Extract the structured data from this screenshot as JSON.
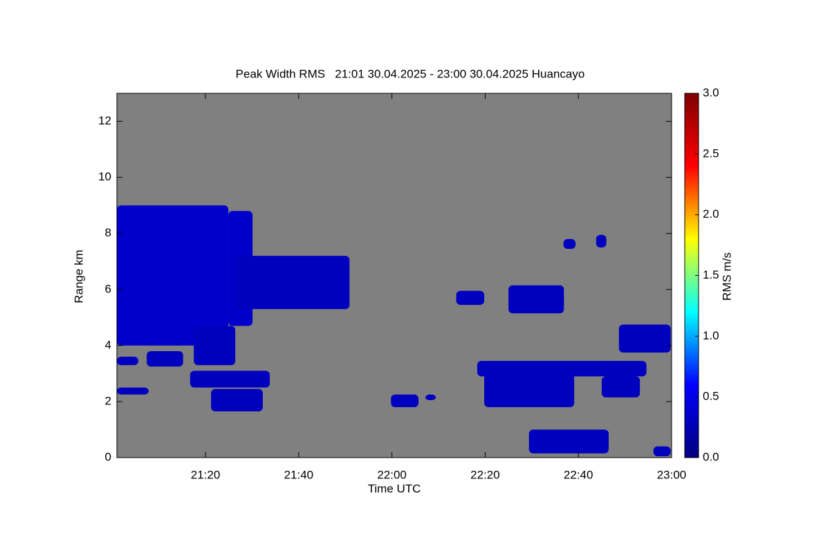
{
  "chart_data": {
    "type": "heatmap",
    "title": "Peak Width RMS   21:01 30.04.2025 - 23:00 30.04.2025 Huancayo",
    "x_label": "Time UTC",
    "y_label": "Range km",
    "colorbar_label": "RMS m/s",
    "background": "#808080",
    "colormap": [
      "#00007f",
      "#0000ff",
      "#00ffff",
      "#ffff00",
      "#ff0000",
      "#7f0000"
    ],
    "xlim": [
      1261,
      1380
    ],
    "xticks": [
      {
        "value": 1280,
        "label": "21:20"
      },
      {
        "value": 1300,
        "label": "21:40"
      },
      {
        "value": 1320,
        "label": "22:00"
      },
      {
        "value": 1340,
        "label": "22:20"
      },
      {
        "value": 1360,
        "label": "22:40"
      },
      {
        "value": 1380,
        "label": "23:00"
      }
    ],
    "ylim": [
      0,
      13
    ],
    "yticks": [
      0,
      2,
      4,
      6,
      8,
      10,
      12
    ],
    "clim": [
      0,
      3
    ],
    "cticks": [
      {
        "value": 0,
        "label": "0.0"
      },
      {
        "value": 0.5,
        "label": "0.5"
      },
      {
        "value": 1,
        "label": "1.0"
      },
      {
        "value": 1.5,
        "label": "1.5"
      },
      {
        "value": 2,
        "label": "2.0"
      },
      {
        "value": 2.5,
        "label": "2.5"
      },
      {
        "value": 3,
        "label": "3.0"
      }
    ],
    "patches": [
      {
        "x": [
          1261,
          1284.9
        ],
        "y": [
          4.0,
          9.0
        ],
        "value": 0.35
      },
      {
        "x": [
          1284.9,
          1290.1
        ],
        "y": [
          4.7,
          8.8
        ],
        "value": 0.35
      },
      {
        "x": [
          1277.5,
          1286.4
        ],
        "y": [
          3.3,
          4.7
        ],
        "value": 0.3
      },
      {
        "x": [
          1286.4,
          1310.9
        ],
        "y": [
          5.3,
          7.2
        ],
        "value": 0.3
      },
      {
        "x": [
          1261,
          1265.6
        ],
        "y": [
          3.3,
          3.6
        ],
        "value": 0.3
      },
      {
        "x": [
          1267.4,
          1275.2
        ],
        "y": [
          3.25,
          3.8
        ],
        "value": 0.3
      },
      {
        "x": [
          1261,
          1267.8
        ],
        "y": [
          2.25,
          2.5
        ],
        "value": 0.3
      },
      {
        "x": [
          1276.7,
          1293.8
        ],
        "y": [
          2.5,
          3.1
        ],
        "value": 0.3
      },
      {
        "x": [
          1281.2,
          1292.3
        ],
        "y": [
          1.65,
          2.45
        ],
        "value": 0.3
      },
      {
        "x": [
          1319.8,
          1325.7
        ],
        "y": [
          1.8,
          2.25
        ],
        "value": 0.3
      },
      {
        "x": [
          1327.2,
          1329.4
        ],
        "y": [
          2.05,
          2.25
        ],
        "value": 0.3
      },
      {
        "x": [
          1333.8,
          1339.8
        ],
        "y": [
          5.45,
          5.95
        ],
        "value": 0.3
      },
      {
        "x": [
          1345,
          1356.9
        ],
        "y": [
          5.15,
          6.15
        ],
        "value": 0.3
      },
      {
        "x": [
          1338.3,
          1374.6
        ],
        "y": [
          2.9,
          3.45
        ],
        "value": 0.3
      },
      {
        "x": [
          1339.8,
          1359.1
        ],
        "y": [
          1.8,
          3.0
        ],
        "value": 0.3
      },
      {
        "x": [
          1365,
          1373.2
        ],
        "y": [
          2.15,
          2.9
        ],
        "value": 0.3
      },
      {
        "x": [
          1368.7,
          1379.8
        ],
        "y": [
          3.75,
          4.75
        ],
        "value": 0.3
      },
      {
        "x": [
          1349.4,
          1366.5
        ],
        "y": [
          0.15,
          1.0
        ],
        "value": 0.3
      },
      {
        "x": [
          1356.8,
          1359.4
        ],
        "y": [
          7.45,
          7.8
        ],
        "value": 0.3
      },
      {
        "x": [
          1363.8,
          1366
        ],
        "y": [
          7.5,
          7.95
        ],
        "value": 0.3
      },
      {
        "x": [
          1376.1,
          1379.8
        ],
        "y": [
          0.05,
          0.4
        ],
        "value": 0.3
      }
    ]
  }
}
